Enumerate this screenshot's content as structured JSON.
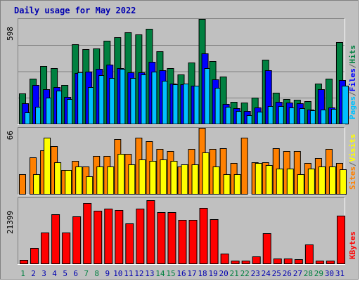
{
  "title": "Daily usage for May 2022",
  "colors": {
    "background": "#c0c0c0",
    "hits": "#008040",
    "files": "#0000ff",
    "pages": "#00c0ff",
    "visits": "#ffff00",
    "sites": "#ff8000",
    "kbytes": "#ff0000",
    "weekend_label": "#008040",
    "weekday_label": "#0000b0"
  },
  "chart_data": {
    "type": "bar",
    "categories": [
      "1",
      "2",
      "3",
      "4",
      "5",
      "6",
      "7",
      "8",
      "9",
      "10",
      "11",
      "12",
      "13",
      "14",
      "15",
      "16",
      "17",
      "18",
      "19",
      "20",
      "21",
      "22",
      "23",
      "24",
      "25",
      "26",
      "27",
      "28",
      "29",
      "30",
      "31"
    ],
    "weekend_days": [
      "1",
      "7",
      "8",
      "14",
      "15",
      "21",
      "22",
      "28",
      "29"
    ],
    "panels": [
      {
        "name": "hits-files-pages",
        "max_label": "598",
        "ylim": [
          0,
          598
        ],
        "right_labels": [
          "Pages",
          "/",
          "Files",
          "/",
          "Hits"
        ],
        "right_label_colors": [
          "#00c0ff",
          "#606060",
          "#0000ff",
          "#606060",
          "#008040"
        ],
        "series": [
          {
            "name": "Hits",
            "color": "#008040",
            "values": [
              175,
              258,
              332,
              320,
              222,
              455,
              428,
              432,
              475,
              493,
              524,
              512,
              544,
              413,
              320,
              283,
              352,
              598,
              357,
              272,
              128,
              125,
              152,
              367,
              180,
              143,
              140,
              130,
              233,
              258,
              465
            ]
          },
          {
            "name": "Files",
            "color": "#0000ff",
            "values": [
              120,
              222,
              200,
              212,
              155,
              290,
              300,
              315,
              340,
              320,
              295,
              297,
              353,
              305,
              230,
              227,
              220,
              404,
              255,
              115,
              90,
              75,
              95,
              308,
              128,
              123,
              118,
              82,
              200,
              95,
              253
            ]
          },
          {
            "name": "Pages",
            "color": "#00c0ff",
            "values": [
              68,
              98,
              153,
              193,
              143,
              295,
              210,
              280,
              265,
              315,
              265,
              283,
              300,
              248,
              228,
              232,
              220,
              318,
              207,
              100,
              75,
              50,
              70,
              105,
              105,
              95,
              90,
              80,
              83,
              88,
              220
            ]
          }
        ]
      },
      {
        "name": "visits-sites",
        "max_label": "66",
        "ylim": [
          0,
          66
        ],
        "right_labels": [
          "Sites",
          "/",
          "Visits"
        ],
        "right_label_colors": [
          "#ff8000",
          "#606060",
          "#ffff00"
        ],
        "series": [
          {
            "name": "Sites",
            "color": "#ff8000",
            "values": [
              20,
              37,
              44,
              48,
              24,
              33,
              28,
              38,
              38,
              55,
              40,
              56,
              53,
              45,
              43,
              28,
              45,
              66,
              45,
              46,
              31,
              56,
              32,
              32,
              46,
              43,
              43,
              31,
              36,
              45,
              31
            ]
          },
          {
            "name": "Visits",
            "color": "#ffff00",
            "values": [
              0,
              20,
              56,
              32,
              24,
              28,
              18,
              28,
              28,
              40,
              30,
              35,
              33,
              35,
              33,
              30,
              30,
              42,
              28,
              20,
              20,
              0,
              31,
              29,
              26,
              26,
              20,
              26,
              28,
              28,
              25
            ]
          }
        ]
      },
      {
        "name": "kbytes",
        "max_label": "21399",
        "ylim": [
          0,
          21399
        ],
        "right_labels": [
          "KBytes"
        ],
        "right_label_colors": [
          "#ff0000"
        ],
        "series": [
          {
            "name": "KBytes",
            "color": "#ff0000",
            "values": [
              1380,
              5200,
              10350,
              16250,
              10330,
              15450,
              19800,
              17350,
              17900,
              17620,
              13100,
              17950,
              20750,
              16950,
              16780,
              14400,
              14450,
              18320,
              14600,
              3440,
              1190,
              1210,
              2540,
              10100,
              1740,
              1740,
              1560,
              6320,
              1230,
              1210,
              15800
            ]
          }
        ]
      }
    ]
  }
}
